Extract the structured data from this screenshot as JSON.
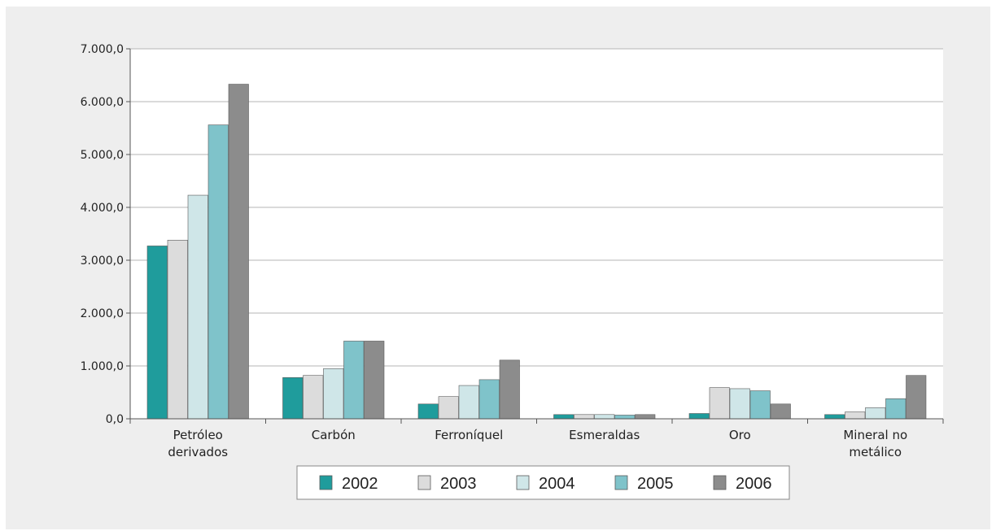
{
  "chart_data": {
    "type": "bar",
    "categories": [
      [
        "Petróleo",
        "derivados"
      ],
      [
        "Carbón"
      ],
      [
        "Ferroníquel"
      ],
      [
        "Esmeraldas"
      ],
      [
        "Oro"
      ],
      [
        "Mineral no",
        "metálico"
      ]
    ],
    "series": [
      {
        "name": "2002",
        "color": "#1f9c9c",
        "values": [
          3270,
          780,
          280,
          80,
          100,
          80
        ]
      },
      {
        "name": "2003",
        "color": "#dcdcdc",
        "values": [
          3380,
          820,
          420,
          80,
          590,
          130
        ]
      },
      {
        "name": "2004",
        "color": "#cfe6e8",
        "values": [
          4230,
          950,
          630,
          80,
          570,
          210
        ]
      },
      {
        "name": "2005",
        "color": "#7fc3ca",
        "values": [
          5560,
          1470,
          740,
          70,
          530,
          380
        ]
      },
      {
        "name": "2006",
        "color": "#8c8c8c",
        "values": [
          6330,
          1470,
          1110,
          80,
          280,
          820
        ]
      }
    ],
    "y_ticks": [
      "0,0",
      "1.000,0",
      "2.000,0",
      "3.000,0",
      "4.000,0",
      "5.000,0",
      "6.000,0",
      "7.000,0"
    ],
    "ylim": [
      0,
      7000
    ],
    "grid": true,
    "legend_position": "bottom"
  }
}
